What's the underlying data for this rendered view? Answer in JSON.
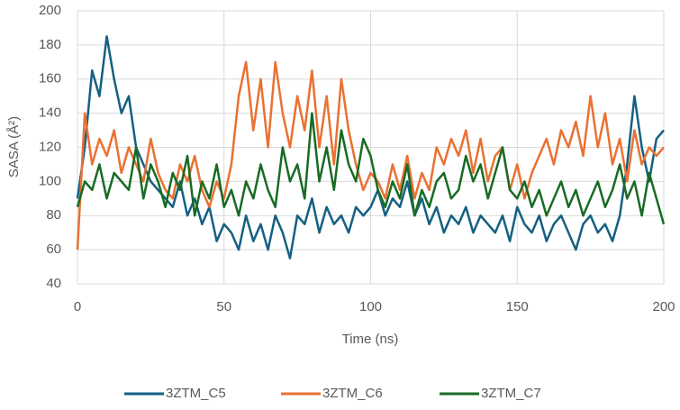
{
  "chart_data": {
    "type": "line",
    "x_label": "Time (ns)",
    "y_label": "SASA (Å²)",
    "x": [
      0,
      2.5,
      5,
      7.5,
      10,
      12.5,
      15,
      17.5,
      20,
      22.5,
      25,
      27.5,
      30,
      32.5,
      35,
      37.5,
      40,
      42.5,
      45,
      47.5,
      50,
      52.5,
      55,
      57.5,
      60,
      62.5,
      65,
      67.5,
      70,
      72.5,
      75,
      77.5,
      80,
      82.5,
      85,
      87.5,
      90,
      92.5,
      95,
      97.5,
      100,
      102.5,
      105,
      107.5,
      110,
      112.5,
      115,
      117.5,
      120,
      122.5,
      125,
      127.5,
      130,
      132.5,
      135,
      137.5,
      140,
      142.5,
      145,
      147.5,
      150,
      152.5,
      155,
      157.5,
      160,
      162.5,
      165,
      167.5,
      170,
      172.5,
      175,
      177.5,
      180,
      182.5,
      185,
      187.5,
      190,
      192.5,
      195,
      197.5,
      200
    ],
    "series": [
      {
        "name": "3ZTM_C5",
        "color": "#156082",
        "values": [
          90,
          120,
          165,
          150,
          185,
          160,
          140,
          150,
          120,
          110,
          100,
          95,
          90,
          85,
          100,
          80,
          90,
          75,
          85,
          65,
          75,
          70,
          60,
          80,
          65,
          75,
          60,
          80,
          70,
          55,
          80,
          75,
          90,
          70,
          85,
          75,
          80,
          70,
          85,
          80,
          85,
          95,
          80,
          90,
          85,
          100,
          80,
          90,
          75,
          85,
          70,
          80,
          75,
          85,
          70,
          80,
          75,
          70,
          80,
          65,
          85,
          75,
          70,
          80,
          65,
          75,
          80,
          70,
          60,
          75,
          80,
          70,
          75,
          65,
          80,
          110,
          150,
          120,
          100,
          125,
          130
        ]
      },
      {
        "name": "3ZTM_C6",
        "color": "#e97132",
        "values": [
          60,
          140,
          110,
          125,
          115,
          130,
          105,
          120,
          110,
          100,
          125,
          105,
          95,
          90,
          110,
          100,
          115,
          95,
          85,
          100,
          90,
          110,
          150,
          170,
          130,
          160,
          120,
          170,
          140,
          120,
          150,
          130,
          165,
          120,
          150,
          110,
          160,
          130,
          110,
          95,
          105,
          100,
          90,
          110,
          95,
          115,
          90,
          105,
          95,
          120,
          110,
          125,
          115,
          130,
          105,
          125,
          100,
          115,
          120,
          95,
          110,
          90,
          105,
          115,
          125,
          110,
          130,
          120,
          135,
          115,
          150,
          120,
          140,
          110,
          125,
          100,
          130,
          110,
          120,
          115,
          120
        ]
      },
      {
        "name": "3ZTM_C7",
        "color": "#196b24",
        "values": [
          85,
          100,
          95,
          110,
          90,
          105,
          100,
          95,
          120,
          90,
          110,
          100,
          85,
          105,
          95,
          115,
          80,
          100,
          90,
          110,
          85,
          95,
          80,
          100,
          90,
          110,
          95,
          85,
          120,
          100,
          110,
          90,
          140,
          100,
          120,
          95,
          130,
          110,
          100,
          125,
          115,
          95,
          85,
          100,
          90,
          110,
          80,
          95,
          85,
          100,
          105,
          90,
          95,
          115,
          100,
          110,
          90,
          105,
          120,
          95,
          90,
          100,
          85,
          95,
          80,
          90,
          100,
          85,
          95,
          80,
          90,
          100,
          85,
          95,
          110,
          90,
          100,
          80,
          105,
          90,
          75
        ]
      }
    ],
    "xlim": [
      0,
      200
    ],
    "xticks": [
      0,
      50,
      100,
      150,
      200
    ],
    "ylim": [
      40,
      200
    ],
    "yticks": [
      40,
      60,
      80,
      100,
      120,
      140,
      160,
      180,
      200
    ],
    "grid": true,
    "legend": "bottom"
  }
}
